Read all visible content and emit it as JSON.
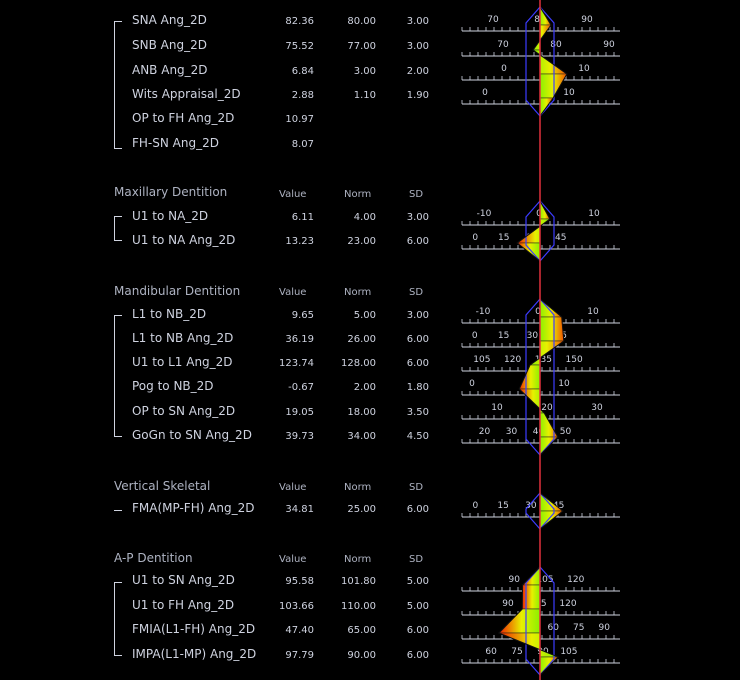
{
  "columns": {
    "value": "Value",
    "norm": "Norm",
    "sd": "SD"
  },
  "groups": [
    {
      "title": "",
      "show_columns": false,
      "rows": [
        {
          "name": "SNA Ang_2D",
          "value": "82.36",
          "norm": "80.00",
          "sd": "3.00",
          "scale": [
            "70",
            "80",
            "90"
          ]
        },
        {
          "name": "SNB Ang_2D",
          "value": "75.52",
          "norm": "77.00",
          "sd": "3.00",
          "scale": [
            "70",
            "80",
            "90"
          ]
        },
        {
          "name": "ANB Ang_2D",
          "value": "6.84",
          "norm": "3.00",
          "sd": "2.00",
          "scale": [
            "0",
            "10"
          ]
        },
        {
          "name": "Wits Appraisal_2D",
          "value": "2.88",
          "norm": "1.10",
          "sd": "1.90",
          "scale": [
            "0",
            "10"
          ]
        },
        {
          "name": "OP to FH Ang_2D",
          "value": "10.97",
          "norm": "",
          "sd": "",
          "scale": []
        },
        {
          "name": "FH-SN Ang_2D",
          "value": "8.07",
          "norm": "",
          "sd": "",
          "scale": []
        }
      ]
    },
    {
      "title": "Maxillary Dentition",
      "show_columns": true,
      "rows": [
        {
          "name": "U1 to NA_2D",
          "value": "6.11",
          "norm": "4.00",
          "sd": "3.00",
          "scale": [
            "-10",
            "0",
            "10"
          ]
        },
        {
          "name": "U1 to NA Ang_2D",
          "value": "13.23",
          "norm": "23.00",
          "sd": "6.00",
          "scale": [
            "0",
            "15",
            "30",
            "45"
          ]
        }
      ]
    },
    {
      "title": "Mandibular Dentition",
      "show_columns": true,
      "rows": [
        {
          "name": "L1 to NB_2D",
          "value": "9.65",
          "norm": "5.00",
          "sd": "3.00",
          "scale": [
            "-10",
            "0",
            "10"
          ]
        },
        {
          "name": "L1 to NB Ang_2D",
          "value": "36.19",
          "norm": "26.00",
          "sd": "6.00",
          "scale": [
            "0",
            "15",
            "30",
            "45"
          ]
        },
        {
          "name": "U1 to L1 Ang_2D",
          "value": "123.74",
          "norm": "128.00",
          "sd": "6.00",
          "scale": [
            "105",
            "120",
            "135",
            "150"
          ]
        },
        {
          "name": "Pog to NB_2D",
          "value": "-0.67",
          "norm": "2.00",
          "sd": "1.80",
          "scale": [
            "0",
            "10"
          ]
        },
        {
          "name": "OP to SN Ang_2D",
          "value": "19.05",
          "norm": "18.00",
          "sd": "3.50",
          "scale": [
            "10",
            "20",
            "30"
          ]
        },
        {
          "name": "GoGn to SN Ang_2D",
          "value": "39.73",
          "norm": "34.00",
          "sd": "4.50",
          "scale": [
            "20",
            "30",
            "40",
            "50"
          ]
        }
      ]
    },
    {
      "title": "Vertical Skeletal",
      "show_columns": true,
      "rows": [
        {
          "name": "FMA(MP-FH) Ang_2D",
          "value": "34.81",
          "norm": "25.00",
          "sd": "6.00",
          "scale": [
            "0",
            "15",
            "30",
            "45"
          ]
        }
      ]
    },
    {
      "title": "A-P Dentition",
      "show_columns": true,
      "rows": [
        {
          "name": "U1 to SN Ang_2D",
          "value": "95.58",
          "norm": "101.80",
          "sd": "5.00",
          "scale": [
            "90",
            "105",
            "120"
          ]
        },
        {
          "name": "U1 to FH Ang_2D",
          "value": "103.66",
          "norm": "110.00",
          "sd": "5.00",
          "scale": [
            "90",
            "105",
            "120"
          ]
        },
        {
          "name": "FMIA(L1-FH) Ang_2D",
          "value": "47.40",
          "norm": "65.00",
          "sd": "6.00",
          "scale": [
            "45",
            "60",
            "75",
            "90"
          ]
        },
        {
          "name": "IMPA(L1-MP) Ang_2D",
          "value": "97.79",
          "norm": "90.00",
          "sd": "6.00",
          "scale": [
            "60",
            "75",
            "90",
            "105"
          ]
        }
      ]
    }
  ],
  "colors": {
    "center_line": "#e0303c",
    "sd_band": "#3c3cff",
    "polygon_green": "#8cf000",
    "polygon_yellow": "#f0e000",
    "polygon_red": "#f01e00"
  }
}
